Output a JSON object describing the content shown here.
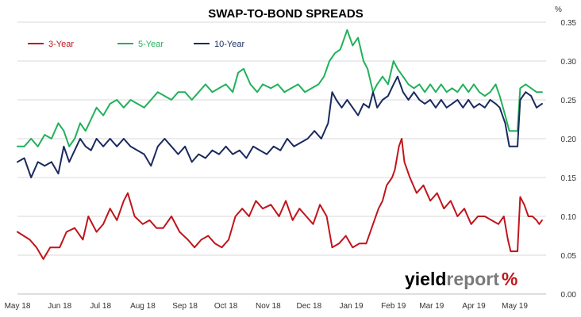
{
  "chart_data": {
    "type": "line",
    "title": "SWAP-TO-BOND SPREADS",
    "y_unit": "%",
    "ylim": [
      0,
      0.35
    ],
    "y_ticks": [
      "0.00",
      "0.05",
      "0.10",
      "0.15",
      "0.20",
      "0.25",
      "0.30",
      "0.35"
    ],
    "x_ticks": [
      "May 18",
      "Jun 18",
      "Jul 18",
      "Aug 18",
      "Sep 18",
      "Oct 18",
      "Nov 18",
      "Dec 18",
      "Jan 19",
      "Feb 19",
      "Mar 19",
      "Apr 19",
      "May 19"
    ],
    "x_range": [
      "2018-05-01",
      "2019-05-24"
    ],
    "grid": true,
    "legend_position": "top-left",
    "series": [
      {
        "name": "3-Year",
        "color": "#c0151b",
        "points": [
          [
            "2018-05-01",
            0.08
          ],
          [
            "2018-05-10",
            0.07
          ],
          [
            "2018-05-15",
            0.06
          ],
          [
            "2018-05-20",
            0.045
          ],
          [
            "2018-05-25",
            0.06
          ],
          [
            "2018-06-01",
            0.06
          ],
          [
            "2018-06-06",
            0.08
          ],
          [
            "2018-06-12",
            0.085
          ],
          [
            "2018-06-18",
            0.07
          ],
          [
            "2018-06-22",
            0.1
          ],
          [
            "2018-06-28",
            0.08
          ],
          [
            "2018-07-03",
            0.09
          ],
          [
            "2018-07-08",
            0.11
          ],
          [
            "2018-07-13",
            0.095
          ],
          [
            "2018-07-18",
            0.12
          ],
          [
            "2018-07-21",
            0.13
          ],
          [
            "2018-07-26",
            0.1
          ],
          [
            "2018-08-01",
            0.09
          ],
          [
            "2018-08-06",
            0.095
          ],
          [
            "2018-08-11",
            0.085
          ],
          [
            "2018-08-16",
            0.085
          ],
          [
            "2018-08-22",
            0.1
          ],
          [
            "2018-08-28",
            0.08
          ],
          [
            "2018-09-03",
            0.07
          ],
          [
            "2018-09-08",
            0.06
          ],
          [
            "2018-09-13",
            0.07
          ],
          [
            "2018-09-18",
            0.075
          ],
          [
            "2018-09-23",
            0.065
          ],
          [
            "2018-09-28",
            0.06
          ],
          [
            "2018-10-03",
            0.07
          ],
          [
            "2018-10-08",
            0.1
          ],
          [
            "2018-10-13",
            0.11
          ],
          [
            "2018-10-18",
            0.1
          ],
          [
            "2018-10-23",
            0.12
          ],
          [
            "2018-10-28",
            0.11
          ],
          [
            "2018-11-03",
            0.115
          ],
          [
            "2018-11-09",
            0.1
          ],
          [
            "2018-11-14",
            0.12
          ],
          [
            "2018-11-19",
            0.095
          ],
          [
            "2018-11-24",
            0.11
          ],
          [
            "2018-11-29",
            0.1
          ],
          [
            "2018-12-04",
            0.09
          ],
          [
            "2018-12-09",
            0.115
          ],
          [
            "2018-12-14",
            0.1
          ],
          [
            "2018-12-18",
            0.06
          ],
          [
            "2018-12-23",
            0.065
          ],
          [
            "2018-12-28",
            0.075
          ],
          [
            "2019-01-02",
            0.06
          ],
          [
            "2019-01-07",
            0.065
          ],
          [
            "2019-01-12",
            0.065
          ],
          [
            "2019-01-17",
            0.09
          ],
          [
            "2019-01-21",
            0.11
          ],
          [
            "2019-01-24",
            0.12
          ],
          [
            "2019-01-27",
            0.14
          ],
          [
            "2019-01-31",
            0.15
          ],
          [
            "2019-02-02",
            0.16
          ],
          [
            "2019-02-05",
            0.19
          ],
          [
            "2019-02-07",
            0.2
          ],
          [
            "2019-02-09",
            0.17
          ],
          [
            "2019-02-13",
            0.15
          ],
          [
            "2019-02-18",
            0.13
          ],
          [
            "2019-02-23",
            0.14
          ],
          [
            "2019-02-28",
            0.12
          ],
          [
            "2019-03-05",
            0.13
          ],
          [
            "2019-03-10",
            0.11
          ],
          [
            "2019-03-15",
            0.12
          ],
          [
            "2019-03-20",
            0.1
          ],
          [
            "2019-03-25",
            0.11
          ],
          [
            "2019-03-30",
            0.09
          ],
          [
            "2019-04-04",
            0.1
          ],
          [
            "2019-04-09",
            0.1
          ],
          [
            "2019-04-14",
            0.095
          ],
          [
            "2019-04-19",
            0.09
          ],
          [
            "2019-04-23",
            0.1
          ],
          [
            "2019-04-26",
            0.07
          ],
          [
            "2019-04-28",
            0.055
          ],
          [
            "2019-05-03",
            0.055
          ],
          [
            "2019-05-05",
            0.125
          ],
          [
            "2019-05-08",
            0.115
          ],
          [
            "2019-05-11",
            0.1
          ],
          [
            "2019-05-14",
            0.1
          ],
          [
            "2019-05-17",
            0.095
          ],
          [
            "2019-05-19",
            0.09
          ],
          [
            "2019-05-21",
            0.095
          ]
        ]
      },
      {
        "name": "5-Year",
        "color": "#21b15a",
        "points": [
          [
            "2018-05-01",
            0.19
          ],
          [
            "2018-05-06",
            0.19
          ],
          [
            "2018-05-11",
            0.2
          ],
          [
            "2018-05-16",
            0.19
          ],
          [
            "2018-05-21",
            0.205
          ],
          [
            "2018-05-26",
            0.2
          ],
          [
            "2018-05-31",
            0.22
          ],
          [
            "2018-06-04",
            0.21
          ],
          [
            "2018-06-08",
            0.19
          ],
          [
            "2018-06-12",
            0.2
          ],
          [
            "2018-06-16",
            0.22
          ],
          [
            "2018-06-20",
            0.21
          ],
          [
            "2018-06-24",
            0.225
          ],
          [
            "2018-06-28",
            0.24
          ],
          [
            "2018-07-03",
            0.23
          ],
          [
            "2018-07-08",
            0.245
          ],
          [
            "2018-07-13",
            0.25
          ],
          [
            "2018-07-18",
            0.24
          ],
          [
            "2018-07-23",
            0.25
          ],
          [
            "2018-07-28",
            0.245
          ],
          [
            "2018-08-02",
            0.24
          ],
          [
            "2018-08-07",
            0.25
          ],
          [
            "2018-08-12",
            0.26
          ],
          [
            "2018-08-17",
            0.255
          ],
          [
            "2018-08-22",
            0.25
          ],
          [
            "2018-08-27",
            0.26
          ],
          [
            "2018-09-01",
            0.26
          ],
          [
            "2018-09-06",
            0.25
          ],
          [
            "2018-09-11",
            0.26
          ],
          [
            "2018-09-16",
            0.27
          ],
          [
            "2018-09-21",
            0.26
          ],
          [
            "2018-09-26",
            0.265
          ],
          [
            "2018-10-01",
            0.27
          ],
          [
            "2018-10-06",
            0.26
          ],
          [
            "2018-10-10",
            0.285
          ],
          [
            "2018-10-14",
            0.29
          ],
          [
            "2018-10-19",
            0.27
          ],
          [
            "2018-10-24",
            0.26
          ],
          [
            "2018-10-28",
            0.27
          ],
          [
            "2018-11-03",
            0.265
          ],
          [
            "2018-11-08",
            0.27
          ],
          [
            "2018-11-13",
            0.26
          ],
          [
            "2018-11-18",
            0.265
          ],
          [
            "2018-11-23",
            0.27
          ],
          [
            "2018-11-28",
            0.26
          ],
          [
            "2018-12-03",
            0.265
          ],
          [
            "2018-12-08",
            0.27
          ],
          [
            "2018-12-12",
            0.28
          ],
          [
            "2018-12-16",
            0.3
          ],
          [
            "2018-12-20",
            0.31
          ],
          [
            "2018-12-24",
            0.315
          ],
          [
            "2018-12-27",
            0.33
          ],
          [
            "2018-12-29",
            0.34
          ],
          [
            "2019-01-02",
            0.32
          ],
          [
            "2019-01-06",
            0.33
          ],
          [
            "2019-01-10",
            0.3
          ],
          [
            "2019-01-13",
            0.29
          ],
          [
            "2019-01-17",
            0.26
          ],
          [
            "2019-01-20",
            0.27
          ],
          [
            "2019-01-24",
            0.28
          ],
          [
            "2019-01-28",
            0.27
          ],
          [
            "2019-02-01",
            0.3
          ],
          [
            "2019-02-04",
            0.29
          ],
          [
            "2019-02-08",
            0.28
          ],
          [
            "2019-02-12",
            0.27
          ],
          [
            "2019-02-16",
            0.265
          ],
          [
            "2019-02-20",
            0.27
          ],
          [
            "2019-02-24",
            0.26
          ],
          [
            "2019-02-28",
            0.27
          ],
          [
            "2019-03-04",
            0.26
          ],
          [
            "2019-03-08",
            0.27
          ],
          [
            "2019-03-12",
            0.26
          ],
          [
            "2019-03-16",
            0.265
          ],
          [
            "2019-03-20",
            0.26
          ],
          [
            "2019-03-24",
            0.27
          ],
          [
            "2019-03-28",
            0.26
          ],
          [
            "2019-04-01",
            0.27
          ],
          [
            "2019-04-05",
            0.26
          ],
          [
            "2019-04-09",
            0.255
          ],
          [
            "2019-04-13",
            0.26
          ],
          [
            "2019-04-17",
            0.27
          ],
          [
            "2019-04-20",
            0.255
          ],
          [
            "2019-04-24",
            0.23
          ],
          [
            "2019-04-27",
            0.21
          ],
          [
            "2019-05-03",
            0.21
          ],
          [
            "2019-05-05",
            0.265
          ],
          [
            "2019-05-09",
            0.27
          ],
          [
            "2019-05-13",
            0.265
          ],
          [
            "2019-05-17",
            0.26
          ],
          [
            "2019-05-21",
            0.26
          ]
        ]
      },
      {
        "name": "10-Year",
        "color": "#1a2a5e",
        "points": [
          [
            "2018-05-01",
            0.17
          ],
          [
            "2018-05-06",
            0.175
          ],
          [
            "2018-05-11",
            0.15
          ],
          [
            "2018-05-16",
            0.17
          ],
          [
            "2018-05-21",
            0.165
          ],
          [
            "2018-05-26",
            0.17
          ],
          [
            "2018-05-31",
            0.155
          ],
          [
            "2018-06-04",
            0.19
          ],
          [
            "2018-06-08",
            0.17
          ],
          [
            "2018-06-12",
            0.185
          ],
          [
            "2018-06-16",
            0.2
          ],
          [
            "2018-06-20",
            0.19
          ],
          [
            "2018-06-24",
            0.185
          ],
          [
            "2018-06-28",
            0.2
          ],
          [
            "2018-07-03",
            0.19
          ],
          [
            "2018-07-08",
            0.2
          ],
          [
            "2018-07-13",
            0.19
          ],
          [
            "2018-07-18",
            0.2
          ],
          [
            "2018-07-23",
            0.19
          ],
          [
            "2018-07-28",
            0.185
          ],
          [
            "2018-08-02",
            0.18
          ],
          [
            "2018-08-07",
            0.165
          ],
          [
            "2018-08-12",
            0.19
          ],
          [
            "2018-08-17",
            0.2
          ],
          [
            "2018-08-22",
            0.19
          ],
          [
            "2018-08-27",
            0.18
          ],
          [
            "2018-09-01",
            0.19
          ],
          [
            "2018-09-06",
            0.17
          ],
          [
            "2018-09-11",
            0.18
          ],
          [
            "2018-09-16",
            0.175
          ],
          [
            "2018-09-21",
            0.185
          ],
          [
            "2018-09-26",
            0.18
          ],
          [
            "2018-10-01",
            0.19
          ],
          [
            "2018-10-06",
            0.18
          ],
          [
            "2018-10-11",
            0.185
          ],
          [
            "2018-10-16",
            0.175
          ],
          [
            "2018-10-21",
            0.19
          ],
          [
            "2018-10-26",
            0.185
          ],
          [
            "2018-10-31",
            0.18
          ],
          [
            "2018-11-05",
            0.19
          ],
          [
            "2018-11-10",
            0.185
          ],
          [
            "2018-11-15",
            0.2
          ],
          [
            "2018-11-20",
            0.19
          ],
          [
            "2018-11-25",
            0.195
          ],
          [
            "2018-11-30",
            0.2
          ],
          [
            "2018-12-05",
            0.21
          ],
          [
            "2018-12-10",
            0.2
          ],
          [
            "2018-12-15",
            0.22
          ],
          [
            "2018-12-18",
            0.26
          ],
          [
            "2018-12-21",
            0.25
          ],
          [
            "2018-12-25",
            0.24
          ],
          [
            "2018-12-29",
            0.25
          ],
          [
            "2019-01-02",
            0.24
          ],
          [
            "2019-01-06",
            0.23
          ],
          [
            "2019-01-10",
            0.245
          ],
          [
            "2019-01-14",
            0.24
          ],
          [
            "2019-01-17",
            0.26
          ],
          [
            "2019-01-20",
            0.24
          ],
          [
            "2019-01-24",
            0.25
          ],
          [
            "2019-01-28",
            0.255
          ],
          [
            "2019-02-01",
            0.27
          ],
          [
            "2019-02-04",
            0.28
          ],
          [
            "2019-02-08",
            0.26
          ],
          [
            "2019-02-12",
            0.25
          ],
          [
            "2019-02-16",
            0.26
          ],
          [
            "2019-02-20",
            0.25
          ],
          [
            "2019-02-24",
            0.245
          ],
          [
            "2019-02-28",
            0.25
          ],
          [
            "2019-03-04",
            0.24
          ],
          [
            "2019-03-08",
            0.25
          ],
          [
            "2019-03-12",
            0.24
          ],
          [
            "2019-03-16",
            0.245
          ],
          [
            "2019-03-20",
            0.25
          ],
          [
            "2019-03-24",
            0.24
          ],
          [
            "2019-03-28",
            0.25
          ],
          [
            "2019-04-01",
            0.24
          ],
          [
            "2019-04-05",
            0.245
          ],
          [
            "2019-04-09",
            0.24
          ],
          [
            "2019-04-13",
            0.25
          ],
          [
            "2019-04-17",
            0.245
          ],
          [
            "2019-04-20",
            0.24
          ],
          [
            "2019-04-24",
            0.22
          ],
          [
            "2019-04-27",
            0.19
          ],
          [
            "2019-05-03",
            0.19
          ],
          [
            "2019-05-05",
            0.25
          ],
          [
            "2019-05-09",
            0.26
          ],
          [
            "2019-05-13",
            0.255
          ],
          [
            "2019-05-17",
            0.24
          ],
          [
            "2019-05-21",
            0.245
          ]
        ]
      }
    ]
  },
  "branding": {
    "logo_word_1": "yield",
    "logo_word_2": "report",
    "logo_symbol": "%"
  }
}
